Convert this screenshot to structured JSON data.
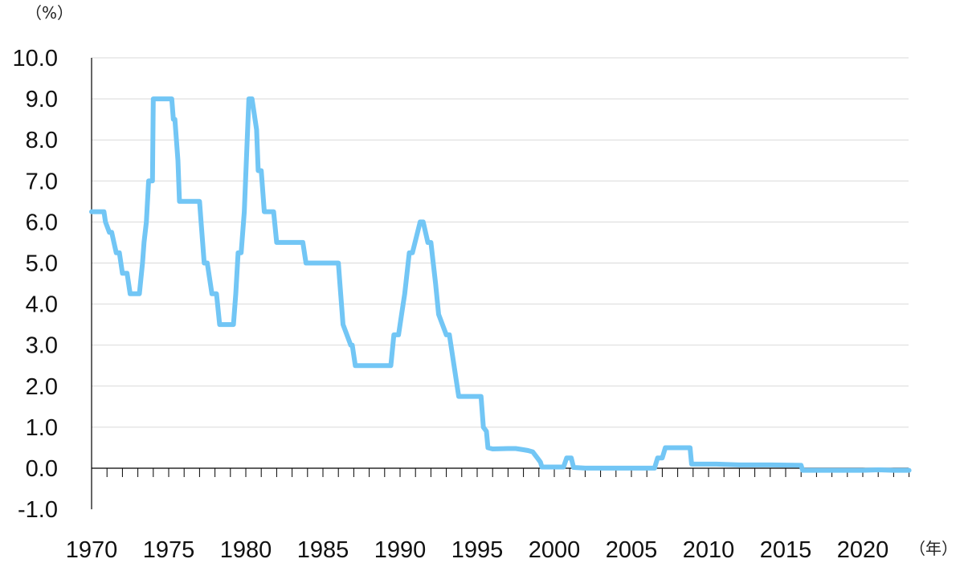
{
  "chart_data": {
    "type": "line",
    "ylabel": "（%）",
    "xlabel": "（年）",
    "ylim": [
      -1.0,
      10.0
    ],
    "yticks": [
      "10.0",
      "9.0",
      "8.0",
      "7.0",
      "6.0",
      "5.0",
      "4.0",
      "3.0",
      "2.0",
      "1.0",
      "0.0",
      "-1.0"
    ],
    "ytick_values": [
      10,
      9,
      8,
      7,
      6,
      5,
      4,
      3,
      2,
      1,
      0,
      -1
    ],
    "xlim": [
      1970,
      2023
    ],
    "xticks": [
      "1970",
      "1975",
      "1980",
      "1985",
      "1990",
      "1995",
      "2000",
      "2005",
      "2010",
      "2015",
      "2020"
    ],
    "xtick_values": [
      1970,
      1975,
      1980,
      1985,
      1990,
      1995,
      2000,
      2005,
      2010,
      2015,
      2020
    ],
    "grid": true,
    "colors": {
      "line": "#72c6f5",
      "grid": "#d9d9d9",
      "axis": "#000000",
      "negative_label": "#c00000"
    },
    "series": [
      {
        "x": [
          1970.0,
          1970.8,
          1970.9,
          1971.15,
          1971.3,
          1971.45,
          1971.6,
          1971.8,
          1972.0,
          1972.3,
          1972.5,
          1972.6,
          1973.1,
          1973.3,
          1973.4,
          1973.55,
          1973.7,
          1973.95,
          1974.0,
          1975.2,
          1975.3,
          1975.4,
          1975.5,
          1975.6,
          1975.7,
          1976.0,
          1977.0,
          1977.1,
          1977.3,
          1977.5,
          1977.8,
          1978.1,
          1978.3,
          1979.2,
          1979.35,
          1979.5,
          1979.7,
          1979.9,
          1980.2,
          1980.4,
          1980.7,
          1980.8,
          1981.0,
          1981.2,
          1981.4,
          1981.8,
          1982.0,
          1983.7,
          1983.9,
          1986.0,
          1986.1,
          1986.3,
          1986.8,
          1986.9,
          1987.1,
          1989.4,
          1989.6,
          1989.9,
          1990.1,
          1990.3,
          1990.6,
          1990.8,
          1991.3,
          1991.5,
          1991.8,
          1992.0,
          1992.3,
          1992.5,
          1993.0,
          1993.2,
          1993.5,
          1993.8,
          1995.25,
          1995.4,
          1995.6,
          1995.7,
          1996.0,
          1997.0,
          1997.5,
          1998.0,
          1998.3,
          1998.6,
          1998.9,
          1999.1,
          1999.2,
          2000.6,
          2000.8,
          2001.1,
          2001.25,
          2002.0,
          2006.5,
          2006.7,
          2007.0,
          2007.2,
          2007.5,
          2008.8,
          2008.9,
          2009.1,
          2010.5,
          2012.0,
          2014.0,
          2016.0,
          2016.1,
          2018.0,
          2020.0,
          2021.0,
          2022.0,
          2023.0
        ],
        "y": [
          6.25,
          6.25,
          6.0,
          5.75,
          5.75,
          5.5,
          5.25,
          5.25,
          4.75,
          4.75,
          4.25,
          4.25,
          4.25,
          5.0,
          5.5,
          6.0,
          7.0,
          7.0,
          9.0,
          9.0,
          8.5,
          8.5,
          8.0,
          7.5,
          6.5,
          6.5,
          6.5,
          6.0,
          5.0,
          5.0,
          4.25,
          4.25,
          3.5,
          3.5,
          4.25,
          5.25,
          5.25,
          6.25,
          9.0,
          9.0,
          8.25,
          7.25,
          7.25,
          6.25,
          6.25,
          6.25,
          5.5,
          5.5,
          5.0,
          5.0,
          4.5,
          3.5,
          3.0,
          3.0,
          2.5,
          2.5,
          3.25,
          3.25,
          3.75,
          4.25,
          5.25,
          5.25,
          6.0,
          6.0,
          5.5,
          5.5,
          4.5,
          3.75,
          3.25,
          3.25,
          2.5,
          1.75,
          1.75,
          1.0,
          0.9,
          0.5,
          0.47,
          0.48,
          0.48,
          0.45,
          0.43,
          0.4,
          0.25,
          0.15,
          0.03,
          0.03,
          0.25,
          0.25,
          0.02,
          0.002,
          0.002,
          0.25,
          0.25,
          0.5,
          0.5,
          0.5,
          0.1,
          0.1,
          0.1,
          0.08,
          0.08,
          0.07,
          -0.05,
          -0.05,
          -0.05,
          -0.04,
          -0.05,
          -0.05
        ]
      }
    ]
  }
}
